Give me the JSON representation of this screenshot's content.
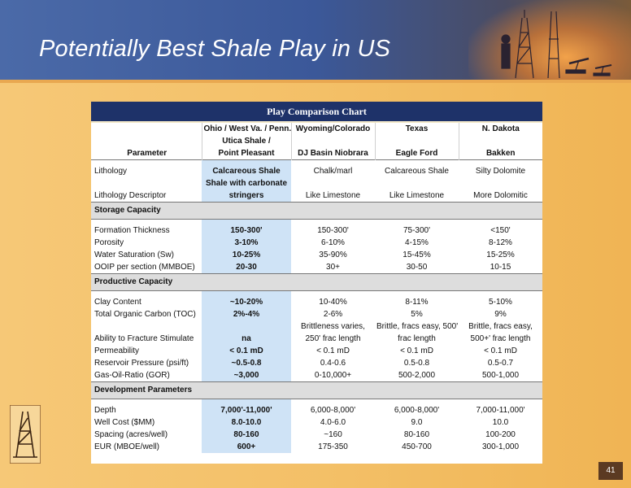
{
  "slide": {
    "title": "Potentially Best Shale Play in US",
    "page_number": "41"
  },
  "table": {
    "title": "Play Comparison Chart",
    "header": {
      "row1": [
        "",
        "Ohio / West Va. / Penn.",
        "Wyoming/Colorado",
        "Texas",
        "N. Dakota"
      ],
      "row2": [
        "",
        "Utica Shale /",
        "",
        "",
        ""
      ],
      "row3": [
        "Parameter",
        "Point Pleasant",
        "DJ Basin Niobrara",
        "Eagle Ford",
        "Bakken"
      ]
    },
    "lithology": {
      "rows": [
        [
          "Lithology",
          "Calcareous Shale",
          "Chalk/marl",
          "Calcareous Shale",
          "Silty Dolomite"
        ],
        [
          "",
          "Shale with carbonate",
          "",
          "",
          ""
        ],
        [
          "Lithology Descriptor",
          "stringers",
          "Like Limestone",
          "Like Limestone",
          "More Dolomitic"
        ]
      ]
    },
    "storage": {
      "title": "Storage Capacity",
      "rows": [
        [
          "Formation Thickness",
          "150-300'",
          "150-300'",
          "75-300'",
          "<150'"
        ],
        [
          "Porosity",
          "3-10%",
          "6-10%",
          "4-15%",
          "8-12%"
        ],
        [
          "Water Saturation (Sw)",
          "10-25%",
          "35-90%",
          "15-45%",
          "15-25%"
        ],
        [
          "OOIP per section (MMBOE)",
          "20-30",
          "30+",
          "30-50",
          "10-15"
        ]
      ]
    },
    "productive": {
      "title": "Productive Capacity",
      "rows": [
        [
          "Clay Content",
          "~10-20%",
          "10-40%",
          "8-11%",
          "5-10%"
        ],
        [
          "Total Organic Carbon (TOC)",
          "2%-4%",
          "2-6%",
          "5%",
          "9%"
        ],
        [
          "",
          "",
          "Brittleness varies,",
          "Brittle, fracs easy, 500'",
          "Brittle, fracs easy,"
        ],
        [
          "Ability to Fracture Stimulate",
          "na",
          "250' frac length",
          "frac length",
          "500+' frac length"
        ],
        [
          "Permeability",
          "< 0.1 mD",
          "< 0.1 mD",
          "< 0.1 mD",
          "< 0.1 mD"
        ],
        [
          "Reservoir Pressure (psi/ft)",
          "~0.5-0.8",
          "0.4-0.6",
          "0.5-0.8",
          "0.5-0.7"
        ],
        [
          "Gas-Oil-Ratio (GOR)",
          "~3,000",
          "0-10,000+",
          "500-2,000",
          "500-1,000"
        ]
      ]
    },
    "development": {
      "title": "Development Parameters",
      "rows": [
        [
          "Depth",
          "7,000'-11,000'",
          "6,000-8,000'",
          "6,000-8,000'",
          "7,000-11,000'"
        ],
        [
          "Well Cost ($MM)",
          "8.0-10.0",
          "4.0-6.0",
          "9.0",
          "10.0"
        ],
        [
          "Spacing (acres/well)",
          "80-160",
          "~160",
          "80-160",
          "100-200"
        ],
        [
          "EUR (MBOE/well)",
          "600+",
          "175-350",
          "450-700",
          "300-1,000"
        ]
      ]
    }
  },
  "colors": {
    "title_bar": "#1e3269",
    "utica_column": "#cfe3f6",
    "section_band": "#dddddd",
    "slide_background": "#f3bf66"
  },
  "icons": [
    "oil-rig-silhouette-icon",
    "derrick-logo-icon"
  ]
}
